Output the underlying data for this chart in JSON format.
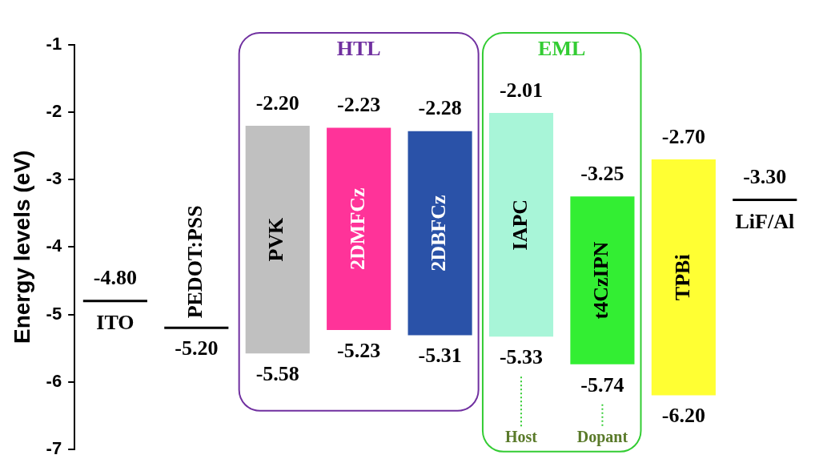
{
  "chart_data": {
    "type": "bar",
    "ylabel": "Energy levels (eV)",
    "categories": [
      "ITO",
      "PEDOT:PSS",
      "PVK",
      "2DMFCz",
      "2DBFCz",
      "IAPC",
      "t4CzIPN",
      "TPBi",
      "LiF/Al"
    ],
    "base": [
      -4.8,
      -5.2,
      -5.58,
      -5.23,
      -5.31,
      -5.33,
      -5.74,
      -6.2,
      -3.3
    ],
    "values": [
      0,
      0,
      3.38,
      3.0,
      3.03,
      3.32,
      2.49,
      3.5,
      0
    ],
    "colors": [
      "#000000",
      "#000000",
      "#c0c0c0",
      "#ff3399",
      "#2a52a8",
      "#a8f5d8",
      "#33ee33",
      "#ffff33",
      "#000000"
    ],
    "ylim": [
      -7,
      -1
    ],
    "yticks": [
      -7,
      -6,
      -5,
      -4,
      -3,
      -2,
      -1
    ],
    "grid": false,
    "legend": false,
    "annotations": [
      {
        "text": "-4.80",
        "x": "ITO",
        "y": -4.8
      },
      {
        "text": "-5.20",
        "x": "PEDOT:PSS",
        "y": -5.2
      },
      {
        "text": "-2.20",
        "x": "PVK",
        "y": -2.2
      },
      {
        "text": "-5.58",
        "x": "PVK",
        "y": -5.58
      },
      {
        "text": "-2.23",
        "x": "2DMFCz",
        "y": -2.23
      },
      {
        "text": "-5.23",
        "x": "2DMFCz",
        "y": -5.23
      },
      {
        "text": "-2.28",
        "x": "2DBFCz",
        "y": -2.28
      },
      {
        "text": "-5.31",
        "x": "2DBFCz",
        "y": -5.31
      },
      {
        "text": "-2.01",
        "x": "IAPC",
        "y": -2.01
      },
      {
        "text": "-5.33",
        "x": "IAPC",
        "y": -5.33
      },
      {
        "text": "-3.25",
        "x": "t4CzIPN",
        "y": -3.25
      },
      {
        "text": "-5.74",
        "x": "t4CzIPN",
        "y": -5.74
      },
      {
        "text": "-2.70",
        "x": "TPBi",
        "y": -2.7
      },
      {
        "text": "-6.20",
        "x": "TPBi",
        "y": -6.2
      },
      {
        "text": "-3.30",
        "x": "LiF/Al",
        "y": -3.3
      },
      "HTL",
      "EML",
      "Host",
      "Dopant"
    ]
  }
}
